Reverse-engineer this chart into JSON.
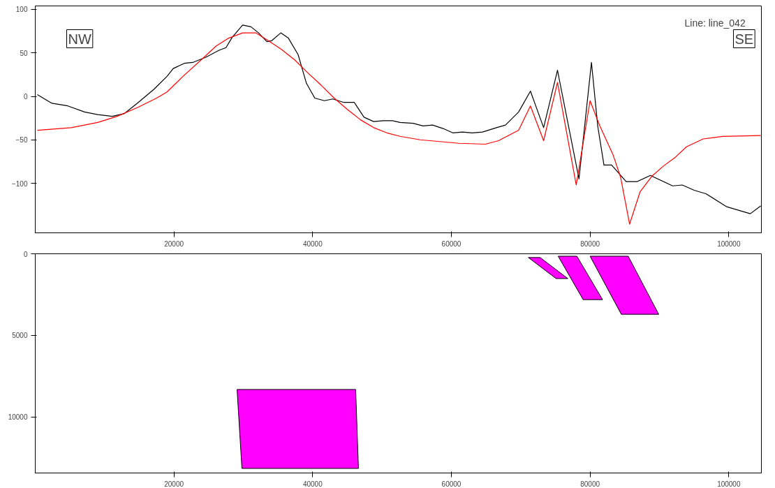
{
  "chart_data": [
    {
      "type": "line",
      "annotations": [
        "NW",
        "SE",
        "Line: line_042"
      ],
      "xlim": [
        0,
        104700
      ],
      "ylim": [
        -157,
        104
      ],
      "xticks": [
        20000,
        40000,
        60000,
        80000,
        100000
      ],
      "yticks": [
        -100,
        -50,
        0,
        50,
        100
      ],
      "grid": false,
      "series": [
        {
          "color": "#000000",
          "x": [
            300,
            2400,
            4700,
            7100,
            9000,
            11100,
            12800,
            14700,
            17100,
            19000,
            19900,
            21500,
            22700,
            24600,
            26500,
            27500,
            28400,
            29900,
            31100,
            32200,
            33400,
            34100,
            35400,
            36500,
            37900,
            39100,
            40300,
            41700,
            42900,
            44500,
            46000,
            47400,
            48800,
            50200,
            51500,
            52600,
            54500,
            55900,
            57300,
            58800,
            60200,
            61600,
            63000,
            64500,
            66500,
            67800,
            69700,
            71400,
            73300,
            75300,
            78400,
            80200,
            81100,
            82000,
            83100,
            85200,
            86800,
            88700,
            91900,
            93300,
            95000,
            96700,
            99700,
            103100,
            104600
          ],
          "values": [
            2,
            -8,
            -11,
            -18,
            -21,
            -23,
            -20,
            -8,
            8,
            23,
            32,
            38,
            39,
            45,
            53,
            56,
            68,
            82,
            80,
            73,
            63,
            64,
            73,
            67,
            48,
            15,
            -2,
            -5,
            -3,
            -7,
            -7,
            -24,
            -29,
            -28,
            -28,
            -30,
            -31,
            -34,
            -33,
            -37,
            -42,
            -41,
            -42,
            -41,
            -36,
            -33,
            -18,
            6,
            -36,
            30,
            -95,
            39,
            -34,
            -79,
            -79,
            -98,
            -98,
            -91,
            -103,
            -102,
            -108,
            -112,
            -127,
            -135,
            -126
          ]
        },
        {
          "color": "#ff0000",
          "x": [
            300,
            5200,
            9000,
            11800,
            14700,
            17500,
            19000,
            21300,
            24200,
            26100,
            27900,
            29900,
            31800,
            33600,
            35500,
            37400,
            39300,
            41200,
            43100,
            45000,
            46900,
            48800,
            50700,
            52600,
            55500,
            58300,
            61100,
            64900,
            66800,
            69700,
            71400,
            73300,
            75300,
            78000,
            80000,
            81400,
            83300,
            84400,
            85700,
            87200,
            88900,
            90600,
            92300,
            93900,
            96300,
            99100,
            104600
          ],
          "values": [
            -39,
            -36,
            -30,
            -23,
            -13,
            -2,
            5,
            23,
            44,
            58,
            67,
            73,
            73,
            64,
            54,
            42,
            27,
            13,
            -2,
            -15,
            -27,
            -36,
            -42,
            -46,
            -50,
            -52,
            -54,
            -55,
            -51,
            -39,
            -11,
            -51,
            16,
            -102,
            -5,
            -34,
            -67,
            -93,
            -147,
            -110,
            -92,
            -80,
            -70,
            -58,
            -49,
            -46,
            -45
          ]
        }
      ]
    },
    {
      "type": "area",
      "xlim": [
        0,
        104700
      ],
      "ylim": [
        13440,
        0
      ],
      "xticks": [
        20000,
        40000,
        60000,
        80000,
        100000
      ],
      "yticks": [
        0,
        5000,
        10000
      ],
      "grid": false,
      "series": [
        {
          "color": "#ff00ff",
          "x": [
            29100,
            46200,
            46600,
            29800
          ],
          "values": [
            8320,
            8320,
            13160,
            13160
          ]
        },
        {
          "color": "#ff00ff",
          "x": [
            71100,
            72800,
            76800,
            75100
          ],
          "values": [
            230,
            230,
            1520,
            1520
          ]
        },
        {
          "color": "#ff00ff",
          "x": [
            75400,
            78100,
            81800,
            79000
          ],
          "values": [
            150,
            150,
            2810,
            2810
          ]
        },
        {
          "color": "#ff00ff",
          "x": [
            80000,
            85500,
            89900,
            84500
          ],
          "values": [
            150,
            150,
            3710,
            3710
          ]
        }
      ]
    }
  ]
}
